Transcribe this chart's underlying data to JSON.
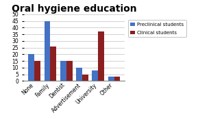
{
  "title": "Oral hygiene education",
  "categories": [
    "None",
    "Family",
    "Dentist",
    "Advertisement",
    "University",
    "Other"
  ],
  "preclinical": [
    20,
    45,
    15,
    10,
    8,
    3
  ],
  "clinical": [
    15,
    26,
    15,
    5,
    37,
    3
  ],
  "preclinical_color": "#4472C4",
  "clinical_color": "#8B2020",
  "ylim": [
    0,
    50
  ],
  "yticks": [
    0,
    5,
    10,
    15,
    20,
    25,
    30,
    35,
    40,
    45,
    50
  ],
  "legend_labels": [
    "Preclinical students",
    "Clinical students"
  ],
  "background_color": "#FFFFFF",
  "title_fontsize": 10,
  "tick_fontsize": 5.5,
  "legend_fontsize": 5.0,
  "bar_width": 0.38
}
